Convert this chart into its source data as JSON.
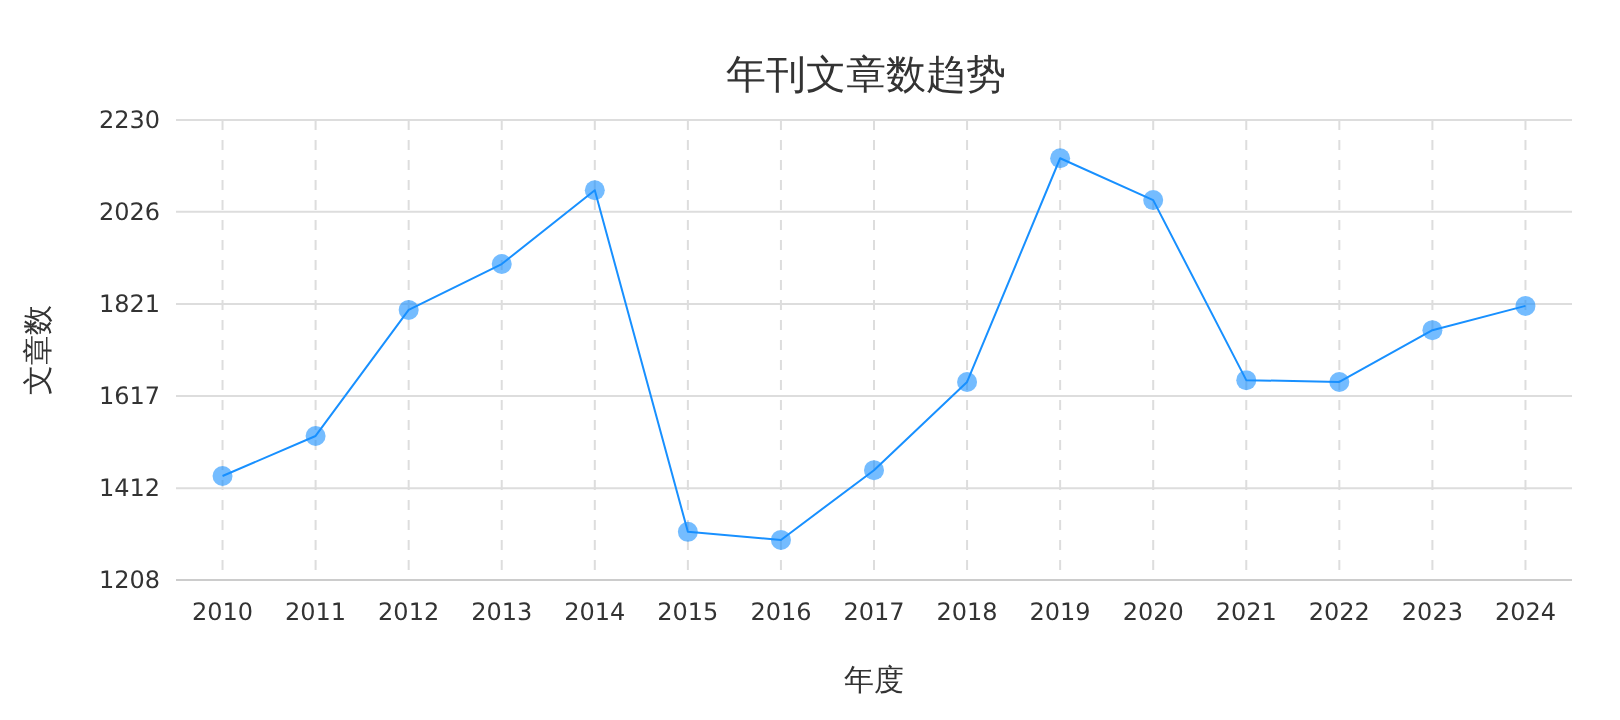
{
  "chart_data": {
    "type": "line",
    "title": "年刊文章数趋势",
    "xlabel": "年度",
    "ylabel": "文章数",
    "categories": [
      "2010",
      "2011",
      "2012",
      "2013",
      "2014",
      "2015",
      "2016",
      "2017",
      "2018",
      "2019",
      "2020",
      "2021",
      "2022",
      "2023",
      "2024"
    ],
    "series": [
      {
        "color": "#1890ff",
        "values": [
          1439,
          1528,
          1808,
          1910,
          2074,
          1315,
          1297,
          1452,
          1648,
          2145,
          2052,
          1652,
          1648,
          1763,
          1817
        ]
      }
    ],
    "ylim": [
      1208,
      2230
    ],
    "yticks": [
      1208,
      1412,
      1617,
      1821,
      2026,
      2230
    ],
    "grid": true,
    "marker": "circle",
    "line_style": "solid"
  }
}
